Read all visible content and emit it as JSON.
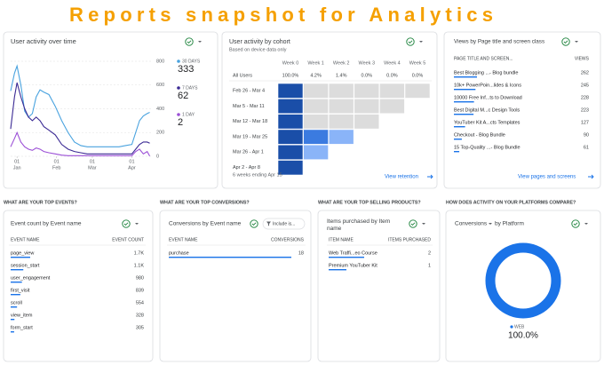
{
  "title": "Reports snapshot for Analytics",
  "user_activity": {
    "title": "User activity over time",
    "x": [
      -5,
      -2,
      0,
      3,
      6,
      9,
      12,
      15,
      18,
      21,
      25,
      30,
      35,
      40,
      45,
      50,
      55,
      60,
      65,
      70,
      75,
      80,
      85,
      90,
      93,
      96,
      99,
      102,
      104
    ],
    "xlim": [
      -5,
      105
    ],
    "ylim": [
      0,
      800
    ],
    "yticks": [
      0,
      200,
      400,
      600,
      800
    ],
    "xticks": [
      {
        "value": 0,
        "label": "01",
        "month": "Jan"
      },
      {
        "value": 31,
        "label": "01",
        "month": "Feb"
      },
      {
        "value": 59,
        "label": "01",
        "month": "Mar"
      },
      {
        "value": 90,
        "label": "01",
        "month": "Apr"
      }
    ],
    "series": [
      {
        "name": "30 DAYS",
        "total": 333,
        "color": "#4aa3df",
        "values": [
          550,
          700,
          760,
          600,
          380,
          330,
          360,
          500,
          560,
          540,
          520,
          420,
          300,
          200,
          120,
          90,
          80,
          80,
          80,
          80,
          80,
          80,
          90,
          100,
          200,
          300,
          340,
          360,
          370
        ]
      },
      {
        "name": "7 DAYS",
        "total": 62,
        "color": "#3b2a94",
        "values": [
          230,
          500,
          620,
          500,
          400,
          330,
          300,
          330,
          300,
          250,
          220,
          180,
          100,
          60,
          40,
          30,
          20,
          20,
          20,
          20,
          20,
          20,
          20,
          20,
          60,
          100,
          120,
          120,
          110
        ]
      },
      {
        "name": "1 DAY",
        "total": 2,
        "color": "#9b4fd6",
        "values": [
          80,
          150,
          200,
          120,
          80,
          60,
          50,
          70,
          60,
          40,
          30,
          20,
          10,
          5,
          5,
          5,
          5,
          5,
          5,
          5,
          5,
          5,
          5,
          5,
          40,
          60,
          20,
          40,
          2
        ]
      }
    ]
  },
  "cohort": {
    "title": "User activity by cohort",
    "subtitle": "Based on device data only",
    "columns": [
      "Week 0",
      "Week 1",
      "Week 2",
      "Week 3",
      "Week 4",
      "Week 5"
    ],
    "all_users_label": "All Users",
    "all_users": [
      "100.0%",
      "4.2%",
      "1.4%",
      "0.0%",
      "0.0%",
      "0.0%"
    ],
    "color_steps": [
      [
        50,
        "#1a4ea8"
      ],
      [
        5,
        "#3b7be0"
      ],
      [
        1,
        "#8ab4f8"
      ],
      [
        0,
        "#dcdcdc"
      ]
    ],
    "rows": [
      {
        "label": "Feb 26 - Mar 4",
        "values": [
          100,
          0,
          0,
          0,
          0,
          0
        ]
      },
      {
        "label": "Mar 5 - Mar 11",
        "values": [
          100,
          0,
          0,
          0,
          0
        ]
      },
      {
        "label": "Mar 12 - Mar 18",
        "values": [
          100,
          0,
          0,
          0
        ]
      },
      {
        "label": "Mar 19 - Mar 25",
        "values": [
          100,
          8,
          4
        ]
      },
      {
        "label": "Mar 26 - Apr 1",
        "values": [
          100,
          3
        ]
      },
      {
        "label": "Apr 2 - Apr 8",
        "values": [
          100
        ]
      }
    ],
    "footer": "6 weeks ending Apr 15",
    "link": "View retention"
  },
  "views": {
    "title": "Views by Page title and screen class",
    "columns": [
      "PAGE TITLE AND SCREEN...",
      "VIEWS"
    ],
    "rows": [
      "Best Blogging ...- Blog bundle",
      "10k+ PowerPoin...lides & Icons",
      "10000 Free Inf...ts to Download",
      "Best Digital M...c Design Tools",
      "YouTuber Kit A...cts Templates",
      "Checkout - Blog Bundle",
      "15 Top-Quality ...- Blog Bundle"
    ],
    "values": [
      262,
      245,
      228,
      223,
      127,
      90,
      61
    ],
    "link": "View pages and screens"
  },
  "events": {
    "section": "WHAT ARE YOUR TOP EVENTS?",
    "title": "Event count by Event name",
    "columns": [
      "EVENT NAME",
      "EVENT COUNT"
    ],
    "rows": [
      "page_view",
      "session_start",
      "user_engagement",
      "first_visit",
      "scroll",
      "view_item",
      "form_start"
    ],
    "values": [
      1700,
      1100,
      980,
      839,
      554,
      328,
      305
    ],
    "value_labels": [
      "1.7K",
      "1.1K",
      "980",
      "839",
      "554",
      "328",
      "305"
    ]
  },
  "conversions": {
    "section": "WHAT ARE YOUR TOP CONVERSIONS?",
    "title": "Conversions by Event name",
    "filter": "Include is...",
    "columns": [
      "EVENT NAME",
      "CONVERSIONS"
    ],
    "rows": [
      "purchase"
    ],
    "values": [
      18
    ]
  },
  "items": {
    "section": "WHAT ARE YOUR TOP SELLING PRODUCTS?",
    "title": "Items purchased by Item name",
    "columns": [
      "ITEM NAME",
      "ITEMS PURCHASED"
    ],
    "rows": [
      "Web Traffi...eo Course",
      "Premium YouTuber Kit"
    ],
    "values": [
      2,
      1
    ]
  },
  "platform": {
    "section": "HOW DOES ACTIVITY ON YOUR PLATFORMS COMPARE?",
    "metric": "Conversions",
    "title": "by Platform",
    "categories": [
      "WEB"
    ],
    "values": [
      100
    ],
    "value_labels": [
      "100.0%"
    ],
    "color": "#1a73e8"
  }
}
